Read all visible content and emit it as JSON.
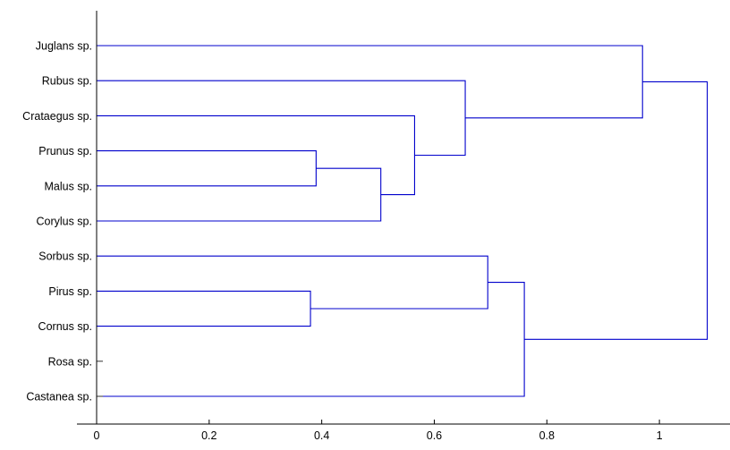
{
  "chart_data": {
    "type": "dendrogram",
    "orientation": "horizontal",
    "title": "",
    "xlabel": "",
    "ylabel": "",
    "xlim": [
      0,
      1.1
    ],
    "xticks": [
      0,
      0.2,
      0.4,
      0.6,
      0.8,
      1
    ],
    "xtick_labels": [
      "0",
      "0.2",
      "0.4",
      "0.6",
      "0.8",
      "1"
    ],
    "grid": false,
    "line_color": "#0000cc",
    "leaves": [
      "Juglans sp.",
      "Rubus sp.",
      "Crataegus sp.",
      "Prunus sp.",
      "Malus sp.",
      "Corylus sp.",
      "Sorbus sp.",
      "Pirus sp.",
      "Cornus sp.",
      "Rosa sp.",
      "Castanea sp."
    ],
    "merges": [
      {
        "id": "c1",
        "children": [
          "Prunus sp.",
          "Malus sp."
        ],
        "height": 0.39
      },
      {
        "id": "c2",
        "children": [
          "Pirus sp.",
          "Cornus sp."
        ],
        "height": 0.38
      },
      {
        "id": "c3",
        "children": [
          "c1",
          "Corylus sp."
        ],
        "height": 0.505
      },
      {
        "id": "c4",
        "children": [
          "Crataegus sp.",
          "c3"
        ],
        "height": 0.565
      },
      {
        "id": "c5",
        "children": [
          "Rubus sp.",
          "c4"
        ],
        "height": 0.655
      },
      {
        "id": "c6",
        "children": [
          "Sorbus sp.",
          "c2"
        ],
        "height": 0.695
      },
      {
        "id": "c7",
        "children": [
          "c6",
          "Castanea sp."
        ],
        "height": 0.76
      },
      {
        "id": "c8",
        "children": [
          "Juglans sp.",
          "c5"
        ],
        "height": 0.97
      },
      {
        "id": "c9",
        "children": [
          "c8",
          "c7"
        ],
        "height": 1.085
      }
    ],
    "zero_height_leaves": [
      "Rosa sp.",
      "Castanea sp."
    ]
  }
}
